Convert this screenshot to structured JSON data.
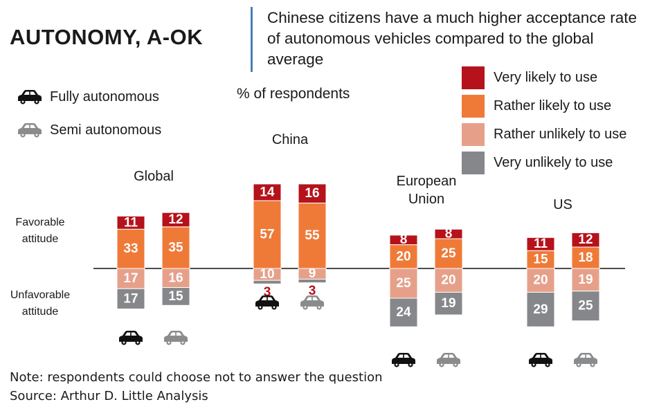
{
  "header": {
    "title": "AUTONOMY, A-OK",
    "subtitle": "Chinese citizens have a much higher acceptance rate of autonomous vehicles compared to the global average"
  },
  "legend_types": [
    {
      "label": "Fully autonomous",
      "icon": "car-black-icon"
    },
    {
      "label": "Semi autonomous",
      "icon": "car-gray-icon"
    }
  ],
  "axis_labels": {
    "favorable": "Favorable attitude",
    "unfavorable": "Unfavorable attitude"
  },
  "footer": {
    "note": "Note: respondents could choose not to answer the question",
    "source": "Source: Arthur D. Little Analysis"
  },
  "chart_data": {
    "type": "bar",
    "stacked": "diverging",
    "units_label": "% of respondents",
    "categories": [
      "Global",
      "China",
      "European Union",
      "US"
    ],
    "bar_types": [
      "Fully autonomous",
      "Semi autonomous"
    ],
    "legend": [
      {
        "name": "Very likely to use",
        "color": "#b5121b"
      },
      {
        "name": "Rather likely to use",
        "color": "#ef7a38"
      },
      {
        "name": "Rather unlikely to use",
        "color": "#e6a08a"
      },
      {
        "name": "Very unlikely to use",
        "color": "#86878a"
      }
    ],
    "groups": [
      {
        "label": "Global",
        "bars": [
          {
            "type": "Fully autonomous",
            "very_likely": 11,
            "rather_likely": 33,
            "rather_unlikely": 17,
            "very_unlikely": 17
          },
          {
            "type": "Semi autonomous",
            "very_likely": 12,
            "rather_likely": 35,
            "rather_unlikely": 16,
            "very_unlikely": 15
          }
        ]
      },
      {
        "label": "China",
        "bars": [
          {
            "type": "Fully autonomous",
            "very_likely": 14,
            "rather_likely": 57,
            "rather_unlikely": 10,
            "very_unlikely": 3
          },
          {
            "type": "Semi autonomous",
            "very_likely": 16,
            "rather_likely": 55,
            "rather_unlikely": 9,
            "very_unlikely": 3
          }
        ]
      },
      {
        "label": "European Union",
        "bars": [
          {
            "type": "Fully autonomous",
            "very_likely": 8,
            "rather_likely": 20,
            "rather_unlikely": 25,
            "very_unlikely": 24
          },
          {
            "type": "Semi autonomous",
            "very_likely": 8,
            "rather_likely": 25,
            "rather_unlikely": 20,
            "very_unlikely": 19
          }
        ]
      },
      {
        "label": "US",
        "bars": [
          {
            "type": "Fully autonomous",
            "very_likely": 11,
            "rather_likely": 15,
            "rather_unlikely": 20,
            "very_unlikely": 29
          },
          {
            "type": "Semi autonomous",
            "very_likely": 12,
            "rather_likely": 18,
            "rather_unlikely": 19,
            "very_unlikely": 25
          }
        ]
      }
    ]
  }
}
